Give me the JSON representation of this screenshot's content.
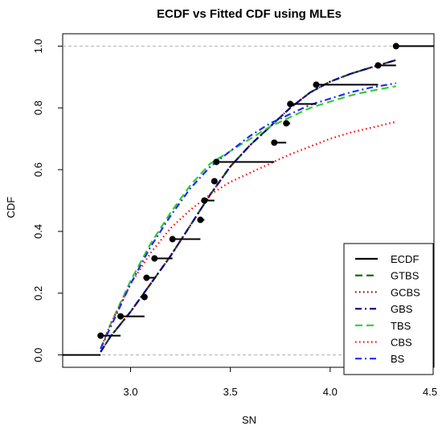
{
  "chart_data": {
    "type": "line",
    "title": "ECDF vs Fitted CDF using MLEs",
    "xlabel": "SN",
    "ylabel": "CDF",
    "xlim": [
      2.66,
      4.52
    ],
    "ylim": [
      -0.04,
      1.04
    ],
    "xticks": [
      {
        "value": 3.0,
        "label": "3.0"
      },
      {
        "value": 3.5,
        "label": "3.5"
      },
      {
        "value": 4.0,
        "label": "4.0"
      },
      {
        "value": 4.5,
        "label": "4.5"
      }
    ],
    "yticks": [
      {
        "value": 0.0,
        "label": "0.0"
      },
      {
        "value": 0.2,
        "label": "0.2"
      },
      {
        "value": 0.4,
        "label": "0.4"
      },
      {
        "value": 0.6,
        "label": "0.6"
      },
      {
        "value": 0.8,
        "label": "0.8"
      },
      {
        "value": 1.0,
        "label": "1.0"
      }
    ],
    "reference_lines": [
      0.0,
      1.0
    ],
    "legend_position": "bottom-right",
    "ecdf": {
      "name": "ECDF",
      "color": "#000000",
      "x": [
        2.85,
        2.95,
        3.07,
        3.08,
        3.12,
        3.21,
        3.35,
        3.37,
        3.42,
        3.43,
        3.72,
        3.78,
        3.8,
        3.93,
        4.24,
        4.33
      ],
      "y": [
        0.0625,
        0.125,
        0.1875,
        0.25,
        0.3125,
        0.375,
        0.4375,
        0.5,
        0.5625,
        0.625,
        0.6875,
        0.75,
        0.8125,
        0.875,
        0.9375,
        1.0
      ]
    },
    "series": [
      {
        "name": "GTBS",
        "color": "#006400",
        "dash": "9 5",
        "x": [
          2.85,
          2.9,
          3.0,
          3.1,
          3.2,
          3.3,
          3.4,
          3.5,
          3.6,
          3.7,
          3.8,
          3.9,
          4.0,
          4.1,
          4.2,
          4.33
        ],
        "y": [
          0.01,
          0.06,
          0.14,
          0.23,
          0.32,
          0.42,
          0.52,
          0.61,
          0.68,
          0.74,
          0.8,
          0.85,
          0.885,
          0.91,
          0.93,
          0.955
        ]
      },
      {
        "name": "GCBS",
        "color": "#8b0000",
        "dash": "1.5 3.5",
        "x": [
          2.85,
          2.9,
          3.0,
          3.1,
          3.2,
          3.3,
          3.4,
          3.5,
          3.6,
          3.7,
          3.8,
          3.9,
          4.0,
          4.1,
          4.2,
          4.33
        ],
        "y": [
          0.01,
          0.06,
          0.14,
          0.23,
          0.32,
          0.42,
          0.52,
          0.61,
          0.68,
          0.74,
          0.8,
          0.85,
          0.885,
          0.91,
          0.93,
          0.955
        ]
      },
      {
        "name": "GBS",
        "color": "#00008b",
        "dash": "8 4 2 4",
        "x": [
          2.85,
          2.9,
          3.0,
          3.1,
          3.2,
          3.3,
          3.4,
          3.5,
          3.6,
          3.7,
          3.8,
          3.9,
          4.0,
          4.1,
          4.2,
          4.33
        ],
        "y": [
          0.01,
          0.06,
          0.14,
          0.23,
          0.32,
          0.42,
          0.52,
          0.61,
          0.68,
          0.74,
          0.8,
          0.85,
          0.885,
          0.91,
          0.93,
          0.955
        ]
      },
      {
        "name": "TBS",
        "color": "#32cd32",
        "dash": "9 5",
        "x": [
          2.85,
          2.9,
          3.0,
          3.1,
          3.2,
          3.3,
          3.4,
          3.5,
          3.6,
          3.7,
          3.8,
          3.9,
          4.0,
          4.1,
          4.2,
          4.33
        ],
        "y": [
          0.02,
          0.1,
          0.24,
          0.36,
          0.46,
          0.55,
          0.62,
          0.66,
          0.7,
          0.74,
          0.77,
          0.8,
          0.82,
          0.84,
          0.855,
          0.87
        ]
      },
      {
        "name": "CBS",
        "color": "#ff0000",
        "dash": "1.5 3.5",
        "x": [
          2.85,
          2.9,
          3.0,
          3.1,
          3.2,
          3.3,
          3.4,
          3.5,
          3.6,
          3.7,
          3.8,
          3.9,
          4.0,
          4.1,
          4.2,
          4.33
        ],
        "y": [
          0.02,
          0.1,
          0.23,
          0.33,
          0.41,
          0.47,
          0.52,
          0.56,
          0.59,
          0.62,
          0.65,
          0.675,
          0.7,
          0.72,
          0.735,
          0.755
        ]
      },
      {
        "name": "BS",
        "color": "#1e2bff",
        "dash": "8 4 2 4",
        "x": [
          2.85,
          2.9,
          3.0,
          3.1,
          3.2,
          3.3,
          3.4,
          3.5,
          3.6,
          3.7,
          3.8,
          3.9,
          4.0,
          4.1,
          4.2,
          4.33
        ],
        "y": [
          0.02,
          0.09,
          0.23,
          0.35,
          0.45,
          0.54,
          0.61,
          0.66,
          0.71,
          0.75,
          0.78,
          0.81,
          0.83,
          0.85,
          0.865,
          0.88
        ]
      }
    ]
  }
}
